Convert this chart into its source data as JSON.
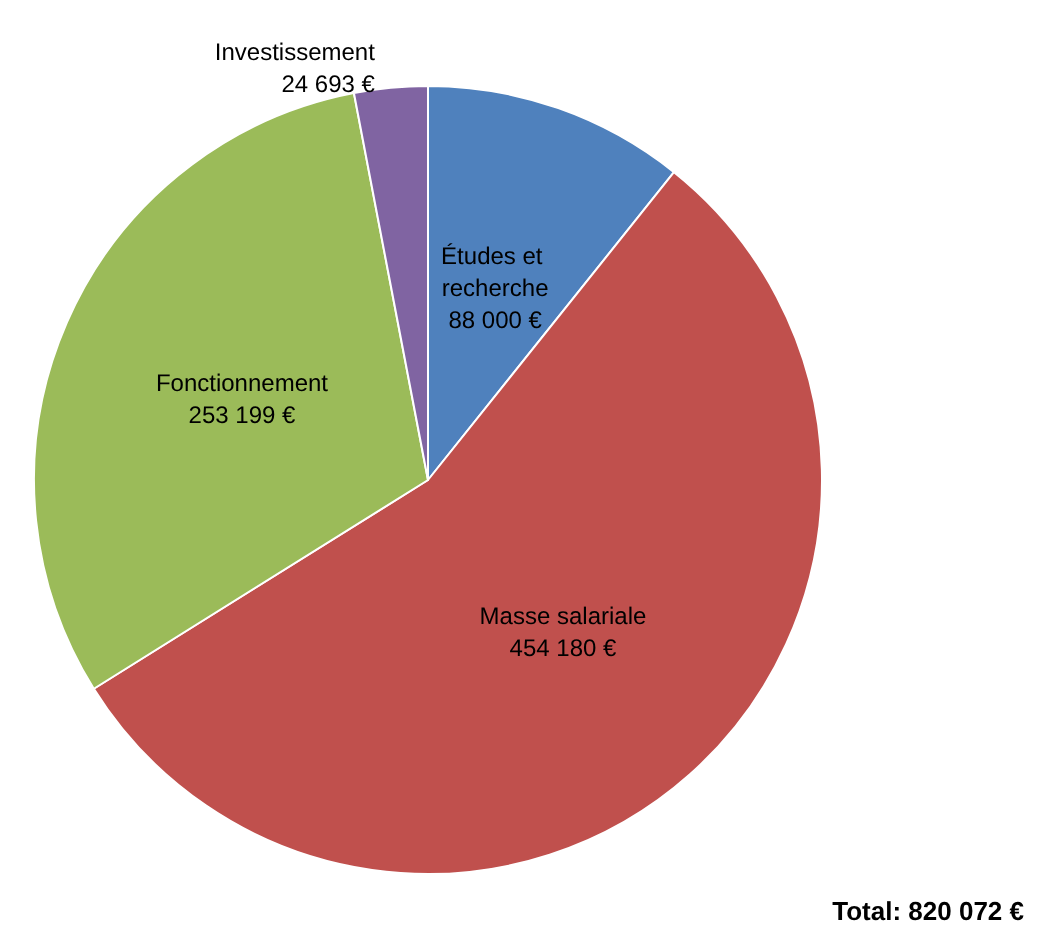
{
  "chart_data": {
    "type": "pie",
    "categories": [
      "Études et recherche",
      "Masse salariale",
      "Fonctionnement",
      "Investissement"
    ],
    "values": [
      88000,
      454180,
      253199,
      24693
    ],
    "colors": [
      "#4f81bd",
      "#c0504d",
      "#9bbb59",
      "#8064a2"
    ],
    "value_labels": [
      "88 000 €",
      "454 180 €",
      "253 199 €",
      "24 693 €"
    ],
    "annotations": [
      "Total: 820 072 €"
    ],
    "legend": false
  }
}
